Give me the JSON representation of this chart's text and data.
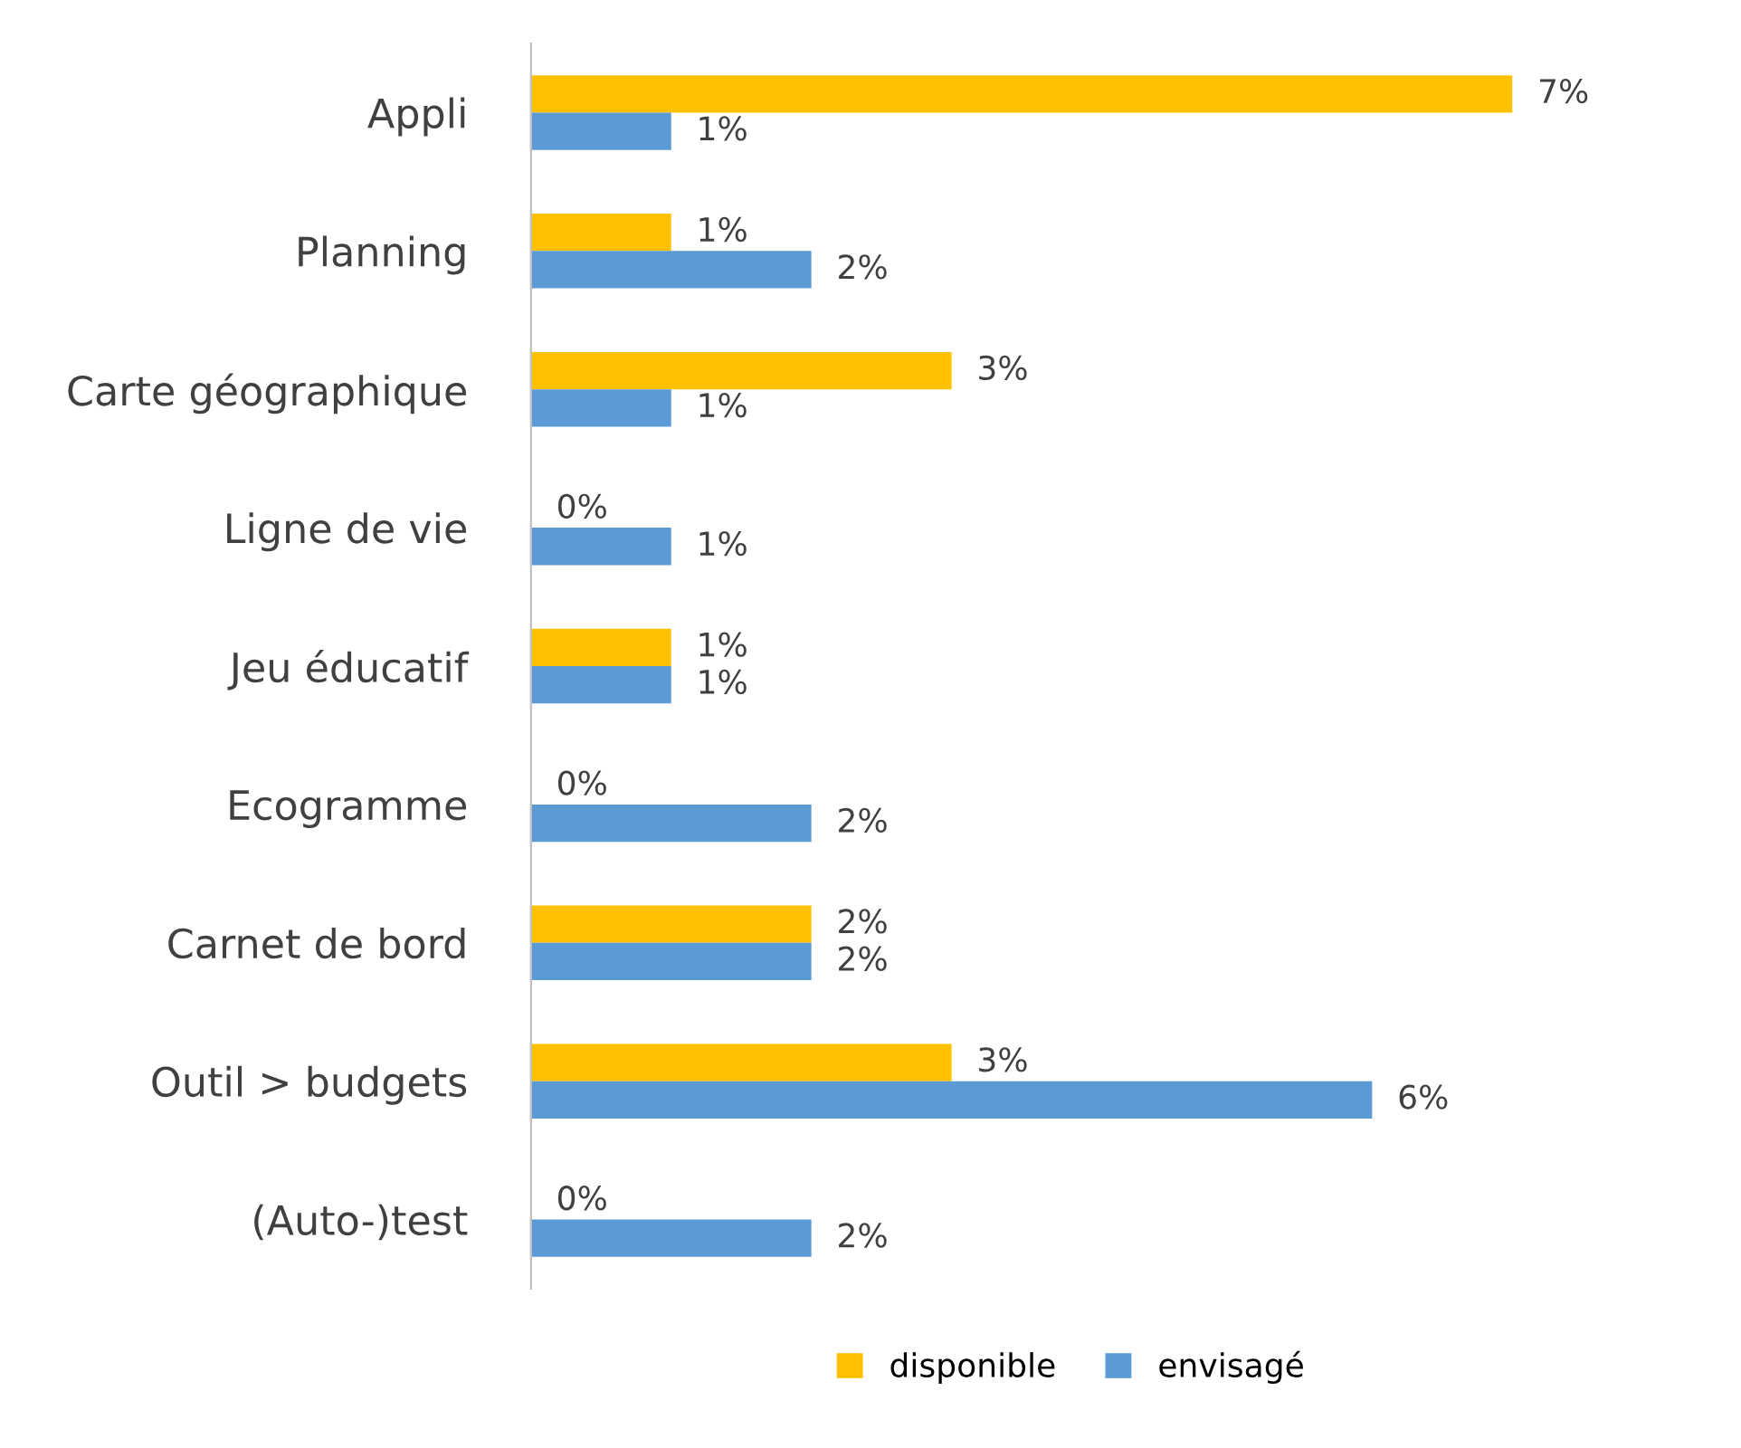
{
  "chart_data": {
    "type": "bar",
    "orientation": "horizontal",
    "categories": [
      "Appli",
      "Planning",
      "Carte géographique",
      "Ligne de vie",
      "Jeu éducatif",
      "Ecogramme",
      "Carnet de bord",
      "Outil > budgets",
      "(Auto-)test"
    ],
    "series": [
      {
        "name": "disponible",
        "color": "#ffc000",
        "values": [
          7,
          1,
          3,
          0,
          1,
          0,
          2,
          3,
          0
        ],
        "value_labels": [
          "7%",
          "1%",
          "3%",
          "0%",
          "1%",
          "0%",
          "2%",
          "3%",
          "0%"
        ]
      },
      {
        "name": "envisagé",
        "color": "#5b9bd5",
        "values": [
          1,
          2,
          1,
          1,
          1,
          2,
          2,
          6,
          2
        ],
        "value_labels": [
          "1%",
          "2%",
          "1%",
          "1%",
          "1%",
          "2%",
          "2%",
          "6%",
          "2%"
        ]
      }
    ],
    "legend": "bottom",
    "grid": false
  }
}
